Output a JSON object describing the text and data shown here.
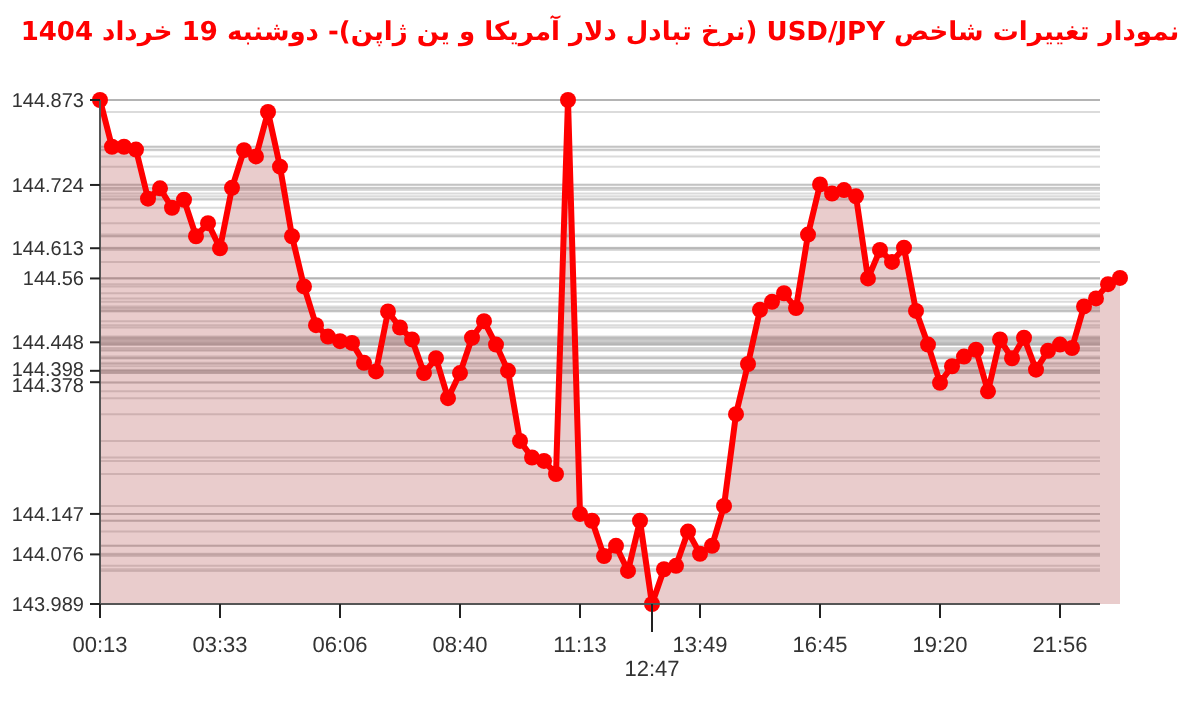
{
  "chart_data": {
    "type": "area",
    "title": "نمودار تغییرات شاخص USD/JPY (نرخ تبادل دلار آمریکا و ین ژاپن)-  دوشنبه  19 خرداد 1404",
    "categories": [
      "00:13",
      null,
      null,
      null,
      null,
      null,
      null,
      null,
      null,
      null,
      "03:33",
      null,
      null,
      null,
      null,
      null,
      null,
      null,
      null,
      null,
      "06:06",
      null,
      null,
      null,
      null,
      null,
      null,
      null,
      null,
      null,
      "08:40",
      null,
      null,
      null,
      null,
      null,
      null,
      null,
      null,
      null,
      "11:13",
      null,
      null,
      null,
      null,
      null,
      "12:47",
      null,
      null,
      null,
      "13:49",
      null,
      null,
      null,
      null,
      null,
      null,
      null,
      null,
      null,
      "16:45",
      null,
      null,
      null,
      null,
      null,
      null,
      null,
      null,
      null,
      "19:20",
      null,
      null,
      null,
      null,
      null,
      null,
      null,
      null,
      null,
      "21:56",
      null,
      null,
      null,
      null,
      null
    ],
    "series": [
      {
        "color": "#ff0000",
        "values": [
          144.873,
          144.791,
          144.791,
          144.786,
          144.7,
          144.718,
          144.684,
          144.698,
          144.634,
          144.657,
          144.613,
          144.719,
          144.785,
          144.774,
          144.852,
          144.756,
          144.634,
          144.546,
          144.478,
          144.458,
          144.45,
          144.447,
          144.412,
          144.397,
          144.502,
          144.474,
          144.453,
          144.394,
          144.42,
          144.35,
          144.394,
          144.456,
          144.485,
          144.444,
          144.398,
          144.275,
          144.246,
          144.24,
          144.217,
          144.873,
          144.147,
          144.135,
          144.073,
          144.091,
          144.047,
          144.135,
          143.989,
          144.05,
          144.056,
          144.116,
          144.077,
          144.091,
          144.161,
          144.322,
          144.41,
          144.505,
          144.519,
          144.534,
          144.508,
          144.637,
          144.725,
          144.709,
          144.715,
          144.704,
          144.56,
          144.61,
          144.589,
          144.614,
          144.503,
          144.444,
          144.377,
          144.406,
          144.423,
          144.435,
          144.362,
          144.453,
          144.42,
          144.456,
          144.4,
          144.433,
          144.444,
          144.438,
          144.511,
          144.525,
          144.55,
          144.561
        ]
      }
    ],
    "ylim": [
      143.989,
      144.873
    ],
    "yticks": [
      144.873,
      144.724,
      144.613,
      144.56,
      144.448,
      144.398,
      144.378,
      144.147,
      144.076,
      143.989
    ],
    "grid": "y",
    "marker": "circle",
    "line_style": "solid"
  }
}
